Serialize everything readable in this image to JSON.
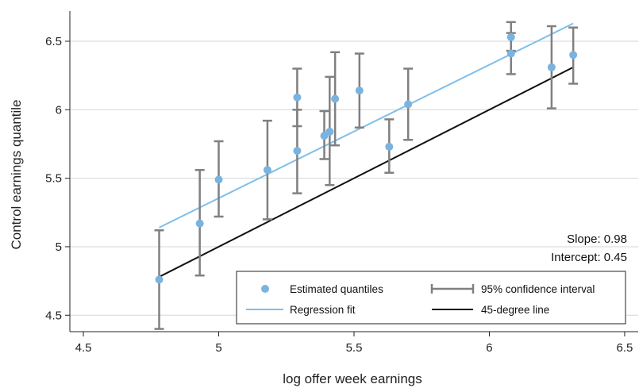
{
  "chart_data": {
    "type": "scatter",
    "title": "",
    "xlabel": "log offer week earnings",
    "ylabel": "Control earnings quantile",
    "xlim": [
      4.45,
      6.55
    ],
    "ylim": [
      4.38,
      6.72
    ],
    "x_ticks": [
      4.5,
      5,
      5.5,
      6,
      6.5
    ],
    "y_ticks": [
      4.5,
      5,
      5.5,
      6,
      6.5
    ],
    "x_tick_labels": [
      "4.5",
      "5",
      "5.5",
      "6",
      "6.5"
    ],
    "y_tick_labels": [
      "4.5",
      "5",
      "5.5",
      "6",
      "6.5"
    ],
    "grid": "horizontal",
    "colors": {
      "points": "#7ab3df",
      "regression": "#7fbfea",
      "ci": "#808080",
      "diagonal": "#111111",
      "grid": "#d6d6d6"
    },
    "series": [
      {
        "name": "Estimated quantiles",
        "points": [
          {
            "x": 4.78,
            "y": 4.76,
            "lo": 4.4,
            "hi": 5.12
          },
          {
            "x": 4.93,
            "y": 5.17,
            "lo": 4.79,
            "hi": 5.56
          },
          {
            "x": 5.0,
            "y": 5.49,
            "lo": 5.22,
            "hi": 5.77
          },
          {
            "x": 5.18,
            "y": 5.56,
            "lo": 5.2,
            "hi": 5.92
          },
          {
            "x": 5.29,
            "y": 6.09,
            "lo": 5.88,
            "hi": 6.3
          },
          {
            "x": 5.29,
            "y": 5.7,
            "lo": 5.39,
            "hi": 6.0
          },
          {
            "x": 5.39,
            "y": 5.81,
            "lo": 5.64,
            "hi": 5.99
          },
          {
            "x": 5.41,
            "y": 5.84,
            "lo": 5.45,
            "hi": 6.24
          },
          {
            "x": 5.43,
            "y": 6.08,
            "lo": 5.74,
            "hi": 6.42
          },
          {
            "x": 5.52,
            "y": 6.14,
            "lo": 5.87,
            "hi": 6.41
          },
          {
            "x": 5.63,
            "y": 5.73,
            "lo": 5.54,
            "hi": 5.93
          },
          {
            "x": 5.7,
            "y": 6.04,
            "lo": 5.78,
            "hi": 6.3
          },
          {
            "x": 6.08,
            "y": 6.53,
            "lo": 6.43,
            "hi": 6.64
          },
          {
            "x": 6.08,
            "y": 6.41,
            "lo": 6.26,
            "hi": 6.56
          },
          {
            "x": 6.23,
            "y": 6.31,
            "lo": 6.01,
            "hi": 6.61
          },
          {
            "x": 6.31,
            "y": 6.4,
            "lo": 6.19,
            "hi": 6.6
          }
        ]
      },
      {
        "name": "Regression fit",
        "x": [
          4.78,
          6.31
        ],
        "y": [
          5.14,
          6.63
        ]
      },
      {
        "name": "45-degree line",
        "x": [
          4.78,
          6.31
        ],
        "y": [
          4.78,
          6.31
        ]
      }
    ],
    "legend": {
      "placement": "bottom-right",
      "items": [
        {
          "label": "Estimated quantiles",
          "symbol": "marker"
        },
        {
          "label": "95% confidence interval",
          "symbol": "errorbar"
        },
        {
          "label": "Regression fit",
          "symbol": "line-light"
        },
        {
          "label": "45-degree line",
          "symbol": "line-dark"
        }
      ]
    },
    "annotations": [
      "Slope: 0.98",
      "Intercept: 0.45"
    ]
  }
}
